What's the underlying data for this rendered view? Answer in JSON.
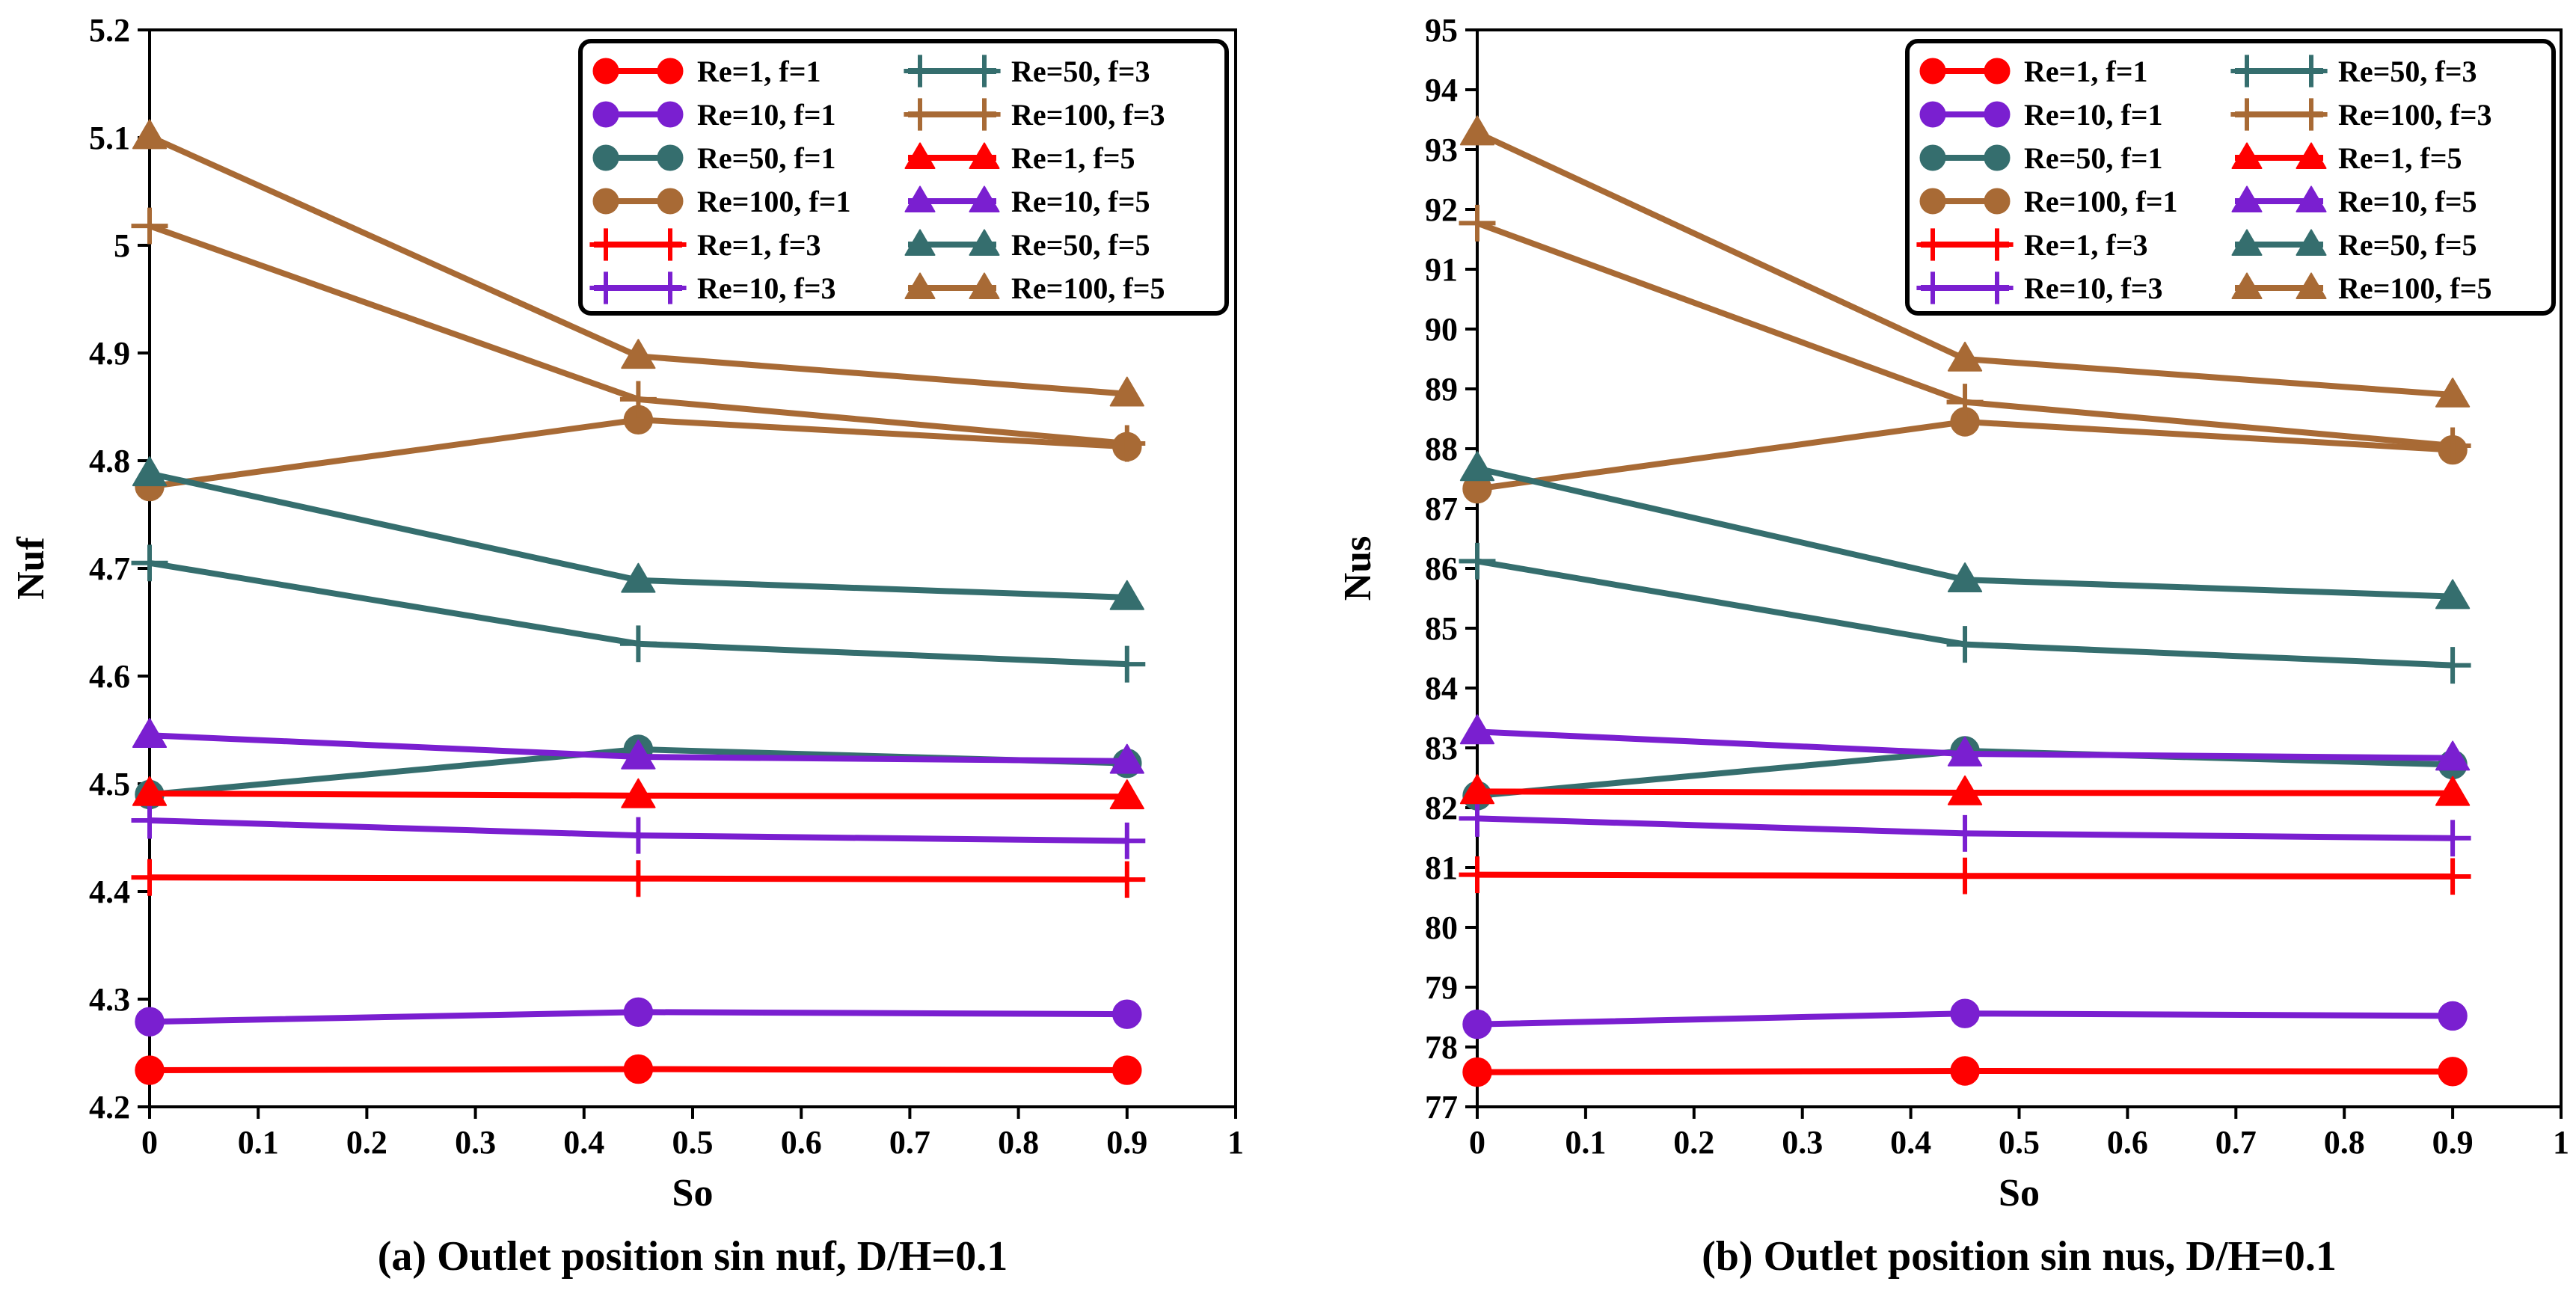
{
  "chart_data": [
    {
      "type": "line",
      "caption": "(a) Outlet position sin nuf, D/H=0.1",
      "xlabel": "So",
      "ylabel": "Nuf",
      "xlim": [
        0,
        1
      ],
      "ylim": [
        4.2,
        5.2
      ],
      "x_ticks": [
        0,
        0.1,
        0.2,
        0.3,
        0.4,
        0.5,
        0.6,
        0.7,
        0.8,
        0.9,
        1
      ],
      "x_tick_labels": [
        "0",
        "0.1",
        "0.2",
        "0.3",
        "0.4",
        "0.5",
        "0.6",
        "0.7",
        "0.8",
        "0.9",
        "1"
      ],
      "y_ticks": [
        4.2,
        4.3,
        4.4,
        4.5,
        4.6,
        4.7,
        4.8,
        4.9,
        5,
        5.1,
        5.2
      ],
      "y_tick_labels": [
        "4.2",
        "4.3",
        "4.4",
        "4.5",
        "4.6",
        "4.7",
        "4.8",
        "4.9",
        "5",
        "5.1",
        "5.2"
      ],
      "x": [
        0,
        0.45,
        0.9
      ],
      "legend_position": "top-right",
      "grid": false,
      "series": [
        {
          "name": "Re=1, f=1",
          "color": "#ff0000",
          "marker": "circle",
          "values": [
            4.234,
            4.235,
            4.234
          ]
        },
        {
          "name": "Re=10, f=1",
          "color": "#7a1fd0",
          "marker": "circle",
          "values": [
            4.279,
            4.288,
            4.286
          ]
        },
        {
          "name": "Re=50, f=1",
          "color": "#356e6e",
          "marker": "circle",
          "values": [
            4.49,
            4.532,
            4.519
          ]
        },
        {
          "name": "Re=100, f=1",
          "color": "#a86a35",
          "marker": "circle",
          "values": [
            4.776,
            4.838,
            4.813
          ]
        },
        {
          "name": "Re=1, f=3",
          "color": "#ff0000",
          "marker": "plus",
          "values": [
            4.413,
            4.412,
            4.411
          ]
        },
        {
          "name": "Re=10, f=3",
          "color": "#7a1fd0",
          "marker": "plus",
          "values": [
            4.466,
            4.452,
            4.447
          ]
        },
        {
          "name": "Re=50, f=3",
          "color": "#356e6e",
          "marker": "plus",
          "values": [
            4.705,
            4.63,
            4.611
          ]
        },
        {
          "name": "Re=100, f=3",
          "color": "#a86a35",
          "marker": "plus",
          "values": [
            5.018,
            4.857,
            4.816
          ]
        },
        {
          "name": "Re=1, f=5",
          "color": "#ff0000",
          "marker": "triangle",
          "values": [
            4.491,
            4.489,
            4.488
          ]
        },
        {
          "name": "Re=10, f=5",
          "color": "#7a1fd0",
          "marker": "triangle",
          "values": [
            4.545,
            4.525,
            4.521
          ]
        },
        {
          "name": "Re=50, f=5",
          "color": "#356e6e",
          "marker": "triangle",
          "values": [
            4.788,
            4.689,
            4.673
          ]
        },
        {
          "name": "Re=100, f=5",
          "color": "#a86a35",
          "marker": "triangle",
          "values": [
            5.101,
            4.897,
            4.862
          ]
        }
      ]
    },
    {
      "type": "line",
      "caption": "(b) Outlet position sin nus, D/H=0.1",
      "xlabel": "So",
      "ylabel": "Nus",
      "xlim": [
        0,
        1
      ],
      "ylim": [
        77,
        95
      ],
      "x_ticks": [
        0,
        0.1,
        0.2,
        0.3,
        0.4,
        0.5,
        0.6,
        0.7,
        0.8,
        0.9,
        1
      ],
      "x_tick_labels": [
        "0",
        "0.1",
        "0.2",
        "0.3",
        "0.4",
        "0.5",
        "0.6",
        "0.7",
        "0.8",
        "0.9",
        "1"
      ],
      "y_ticks": [
        77,
        78,
        79,
        80,
        81,
        82,
        83,
        84,
        85,
        86,
        87,
        88,
        89,
        90,
        91,
        92,
        93,
        94,
        95
      ],
      "y_tick_labels": [
        "77",
        "78",
        "79",
        "80",
        "81",
        "82",
        "83",
        "84",
        "85",
        "86",
        "87",
        "88",
        "89",
        "90",
        "91",
        "92",
        "93",
        "94",
        "95"
      ],
      "x": [
        0,
        0.45,
        0.9
      ],
      "legend_position": "top-right",
      "grid": false,
      "series": [
        {
          "name": "Re=1, f=1",
          "color": "#ff0000",
          "marker": "circle",
          "values": [
            77.58,
            77.6,
            77.59
          ]
        },
        {
          "name": "Re=10, f=1",
          "color": "#7a1fd0",
          "marker": "circle",
          "values": [
            78.38,
            78.56,
            78.52
          ]
        },
        {
          "name": "Re=50, f=1",
          "color": "#356e6e",
          "marker": "circle",
          "values": [
            82.2,
            82.95,
            82.72
          ]
        },
        {
          "name": "Re=100, f=1",
          "color": "#a86a35",
          "marker": "circle",
          "values": [
            87.33,
            88.45,
            87.98
          ]
        },
        {
          "name": "Re=1, f=3",
          "color": "#ff0000",
          "marker": "plus",
          "values": [
            80.88,
            80.86,
            80.85
          ]
        },
        {
          "name": "Re=10, f=3",
          "color": "#7a1fd0",
          "marker": "plus",
          "values": [
            81.82,
            81.57,
            81.49
          ]
        },
        {
          "name": "Re=50, f=3",
          "color": "#356e6e",
          "marker": "plus",
          "values": [
            86.12,
            84.73,
            84.38
          ]
        },
        {
          "name": "Re=100, f=3",
          "color": "#a86a35",
          "marker": "plus",
          "values": [
            91.77,
            88.78,
            88.05
          ]
        },
        {
          "name": "Re=1, f=5",
          "color": "#ff0000",
          "marker": "triangle",
          "values": [
            82.27,
            82.25,
            82.24
          ]
        },
        {
          "name": "Re=10, f=5",
          "color": "#7a1fd0",
          "marker": "triangle",
          "values": [
            83.27,
            82.9,
            82.83
          ]
        },
        {
          "name": "Re=50, f=5",
          "color": "#356e6e",
          "marker": "triangle",
          "values": [
            87.67,
            85.81,
            85.53
          ]
        },
        {
          "name": "Re=100, f=5",
          "color": "#a86a35",
          "marker": "triangle",
          "values": [
            93.28,
            89.5,
            88.9
          ]
        }
      ]
    }
  ]
}
